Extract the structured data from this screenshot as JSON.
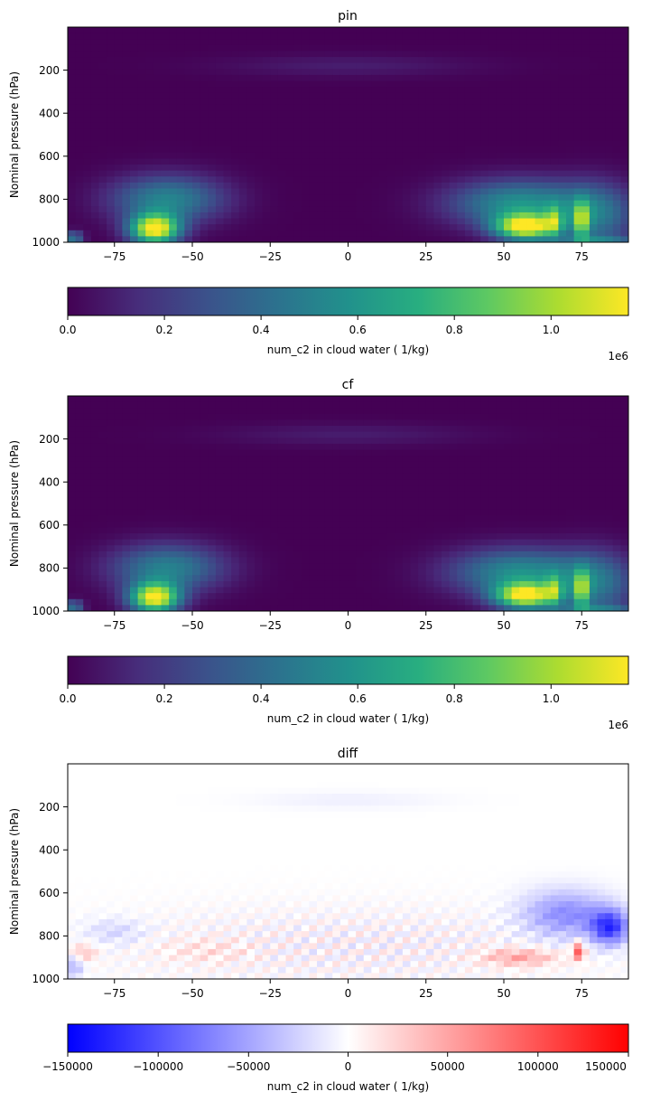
{
  "chart_data": [
    {
      "type": "heatmap",
      "title": "pin",
      "xlabel": "",
      "ylabel": "Nominal pressure (hPa)",
      "xlim": [
        -90,
        90
      ],
      "ylim": [
        1000,
        0
      ],
      "xticks": [
        "−75",
        "−50",
        "−25",
        "0",
        "25",
        "50",
        "75"
      ],
      "xtick_values": [
        -75,
        -50,
        -25,
        0,
        25,
        50,
        75
      ],
      "yticks": [
        "200",
        "400",
        "600",
        "800",
        "1000"
      ],
      "ytick_values": [
        200,
        400,
        600,
        800,
        1000
      ],
      "colormap": "viridis",
      "colorbar": {
        "label": "num_c2 in cloud water ( 1/kg)",
        "ticks": [
          "0.0",
          "0.2",
          "0.4",
          "0.6",
          "0.8",
          "1.0"
        ],
        "tick_values": [
          0.0,
          0.2,
          0.4,
          0.6,
          0.8,
          1.0
        ],
        "range": [
          0.0,
          1.16
        ],
        "offset_text": "1e6"
      }
    },
    {
      "type": "heatmap",
      "title": "cf",
      "xlabel": "",
      "ylabel": "Nominal pressure (hPa)",
      "xlim": [
        -90,
        90
      ],
      "ylim": [
        1000,
        0
      ],
      "xticks": [
        "−75",
        "−50",
        "−25",
        "0",
        "25",
        "50",
        "75"
      ],
      "xtick_values": [
        -75,
        -50,
        -25,
        0,
        25,
        50,
        75
      ],
      "yticks": [
        "200",
        "400",
        "600",
        "800",
        "1000"
      ],
      "ytick_values": [
        200,
        400,
        600,
        800,
        1000
      ],
      "colormap": "viridis",
      "colorbar": {
        "label": "num_c2 in cloud water ( 1/kg)",
        "ticks": [
          "0.0",
          "0.2",
          "0.4",
          "0.6",
          "0.8",
          "1.0"
        ],
        "tick_values": [
          0.0,
          0.2,
          0.4,
          0.6,
          0.8,
          1.0
        ],
        "range": [
          0.0,
          1.16
        ],
        "offset_text": "1e6"
      }
    },
    {
      "type": "heatmap",
      "title": "diff",
      "xlabel": "",
      "ylabel": "Nominal pressure (hPa)",
      "xlim": [
        -90,
        90
      ],
      "ylim": [
        1000,
        0
      ],
      "xticks": [
        "−75",
        "−50",
        "−25",
        "0",
        "25",
        "50",
        "75"
      ],
      "xtick_values": [
        -75,
        -50,
        -25,
        0,
        25,
        50,
        75
      ],
      "yticks": [
        "200",
        "400",
        "600",
        "800",
        "1000"
      ],
      "ytick_values": [
        200,
        400,
        600,
        800,
        1000
      ],
      "colormap": "bwr",
      "colorbar": {
        "label": "num_c2 in cloud water ( 1/kg)",
        "ticks": [
          "−150000",
          "−100000",
          "−50000",
          "0",
          "50000",
          "100000",
          "150000"
        ],
        "tick_values": [
          -150000,
          -100000,
          -50000,
          0,
          50000,
          100000,
          150000
        ],
        "range": [
          -155000,
          155000
        ],
        "offset_text": ""
      }
    }
  ]
}
